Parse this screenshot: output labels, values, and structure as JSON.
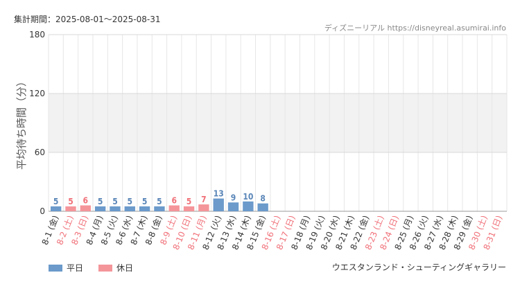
{
  "header": {
    "period_label": "集計期間：2025-08-01～2025-08-31",
    "site_credit": "ディズニーリアル https://disneyreal.asumirai.info"
  },
  "footer": {
    "attraction_name": "ウエスタンランド・シューティングギャラリー"
  },
  "colors": {
    "weekday": "#6b9acb",
    "holiday": "#f4959a",
    "weekday_text": "#5a86b8",
    "holiday_text": "#f07078",
    "band": "#f2f2f2",
    "grid": "#e6e6e6"
  },
  "chart_data": {
    "type": "bar",
    "ylabel": "平均待ち時間（分）",
    "xlabel": "",
    "ylim": [
      0,
      180
    ],
    "yticks": [
      0,
      60,
      120,
      180
    ],
    "shaded_band": [
      60,
      120
    ],
    "legend": [
      {
        "label": "平日",
        "kind": "weekday"
      },
      {
        "label": "休日",
        "kind": "holiday"
      }
    ],
    "legend_position": "bottom-left",
    "categories": [
      "8-1 (金)",
      "8-2 (土)",
      "8-3 (日)",
      "8-4 (月)",
      "8-5 (火)",
      "8-6 (水)",
      "8-7 (木)",
      "8-8 (金)",
      "8-9 (土)",
      "8-10 (日)",
      "8-11 (月)",
      "8-12 (火)",
      "8-13 (水)",
      "8-14 (木)",
      "8-15 (金)",
      "8-16 (土)",
      "8-17 (日)",
      "8-18 (月)",
      "8-19 (火)",
      "8-20 (水)",
      "8-21 (木)",
      "8-22 (金)",
      "8-23 (土)",
      "8-24 (日)",
      "8-25 (月)",
      "8-26 (火)",
      "8-27 (水)",
      "8-28 (木)",
      "8-29 (金)",
      "8-30 (土)",
      "8-31 (日)"
    ],
    "kinds": [
      "weekday",
      "holiday",
      "holiday",
      "weekday",
      "weekday",
      "weekday",
      "weekday",
      "weekday",
      "holiday",
      "holiday",
      "holiday",
      "weekday",
      "weekday",
      "weekday",
      "weekday",
      "holiday",
      "holiday",
      "weekday",
      "weekday",
      "weekday",
      "weekday",
      "weekday",
      "holiday",
      "holiday",
      "weekday",
      "weekday",
      "weekday",
      "weekday",
      "weekday",
      "holiday",
      "holiday"
    ],
    "values": [
      5,
      5,
      6,
      5,
      5,
      5,
      5,
      5,
      6,
      5,
      7,
      13,
      9,
      10,
      8,
      null,
      null,
      null,
      null,
      null,
      null,
      null,
      null,
      null,
      null,
      null,
      null,
      null,
      null,
      null,
      null
    ]
  }
}
